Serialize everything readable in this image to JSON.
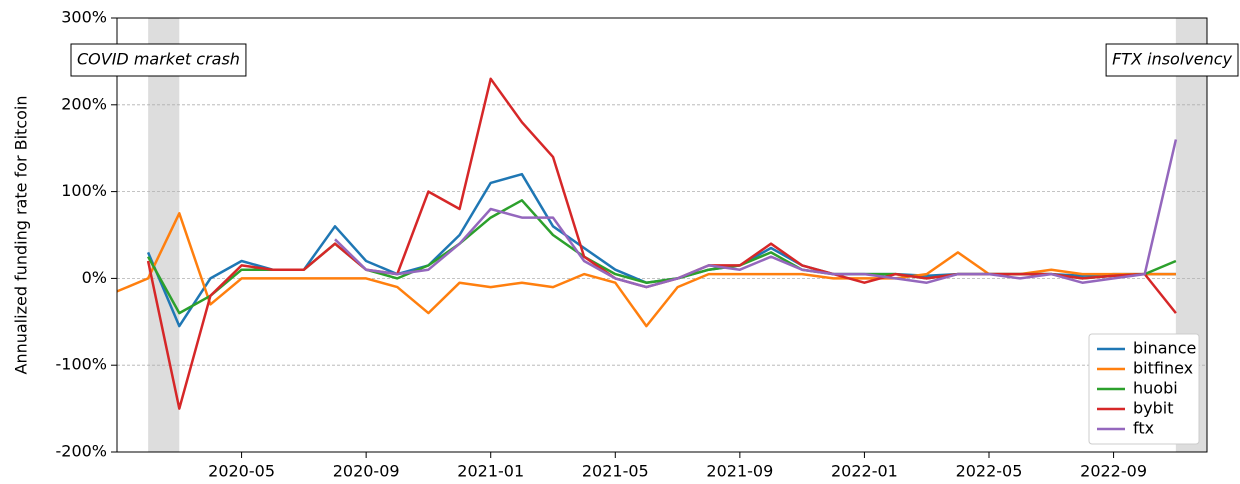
{
  "chart_data": {
    "type": "line",
    "ylabel": "Annualized funding rate for Bitcoin",
    "x": [
      "2020-01",
      "2020-02",
      "2020-03",
      "2020-04",
      "2020-05",
      "2020-06",
      "2020-07",
      "2020-08",
      "2020-09",
      "2020-10",
      "2020-11",
      "2020-12",
      "2021-01",
      "2021-02",
      "2021-03",
      "2021-04",
      "2021-05",
      "2021-06",
      "2021-07",
      "2021-08",
      "2021-09",
      "2021-10",
      "2021-11",
      "2021-12",
      "2022-01",
      "2022-02",
      "2022-03",
      "2022-04",
      "2022-05",
      "2022-06",
      "2022-07",
      "2022-08",
      "2022-09",
      "2022-10",
      "2022-11",
      "2022-12"
    ],
    "series": [
      {
        "name": "binance",
        "color": "#1f77b4",
        "values": [
          null,
          30,
          -55,
          0,
          20,
          10,
          10,
          60,
          20,
          5,
          15,
          50,
          110,
          120,
          60,
          35,
          10,
          -5,
          0,
          10,
          15,
          35,
          15,
          5,
          5,
          5,
          3,
          5,
          5,
          5,
          5,
          3,
          5,
          5,
          5,
          null
        ]
      },
      {
        "name": "bitfinex",
        "color": "#ff7f0e",
        "values": [
          -15,
          0,
          75,
          -30,
          0,
          0,
          0,
          0,
          0,
          -10,
          -40,
          -5,
          -10,
          -5,
          -10,
          5,
          -5,
          -55,
          -10,
          5,
          5,
          5,
          5,
          0,
          0,
          0,
          5,
          30,
          5,
          5,
          10,
          5,
          5,
          5,
          5,
          null
        ]
      },
      {
        "name": "huobi",
        "color": "#2ca02c",
        "values": [
          null,
          25,
          -40,
          -20,
          10,
          10,
          10,
          40,
          10,
          0,
          15,
          40,
          70,
          90,
          50,
          25,
          5,
          -5,
          0,
          10,
          15,
          30,
          10,
          5,
          5,
          5,
          0,
          5,
          5,
          5,
          5,
          0,
          3,
          5,
          20,
          null
        ]
      },
      {
        "name": "bybit",
        "color": "#d62728",
        "values": [
          null,
          20,
          -150,
          -20,
          15,
          10,
          10,
          40,
          10,
          5,
          100,
          80,
          230,
          180,
          140,
          25,
          0,
          -10,
          0,
          15,
          15,
          40,
          15,
          5,
          -5,
          5,
          0,
          5,
          5,
          5,
          5,
          0,
          3,
          5,
          -40,
          null
        ]
      },
      {
        "name": "ftx",
        "color": "#9467bd",
        "values": [
          null,
          null,
          null,
          null,
          null,
          null,
          null,
          45,
          10,
          5,
          10,
          40,
          80,
          70,
          70,
          20,
          0,
          -10,
          0,
          15,
          10,
          25,
          10,
          5,
          5,
          0,
          -5,
          5,
          5,
          0,
          5,
          -5,
          0,
          5,
          160,
          null
        ]
      }
    ],
    "xlim": [
      "2020-01",
      "2022-12"
    ],
    "xticks": [
      "2020-05",
      "2020-09",
      "2021-01",
      "2021-05",
      "2021-09",
      "2022-01",
      "2022-05",
      "2022-09"
    ],
    "ylim": [
      -200,
      300
    ],
    "yticks": [
      {
        "value": -200,
        "label": "-200%"
      },
      {
        "value": -100,
        "label": "-100%"
      },
      {
        "value": 0,
        "label": "0%"
      },
      {
        "value": 100,
        "label": "100%"
      },
      {
        "value": 200,
        "label": "200%"
      },
      {
        "value": 300,
        "label": "300%"
      }
    ],
    "grid": true,
    "legend": "lower right",
    "spans": [
      {
        "label": "COVID market crash",
        "start": "2020-02",
        "end": "2020-03",
        "color": "#dddddd"
      },
      {
        "label": "FTX insolvency",
        "start": "2022-11",
        "end": "2022-12",
        "color": "#dddddd"
      }
    ]
  }
}
